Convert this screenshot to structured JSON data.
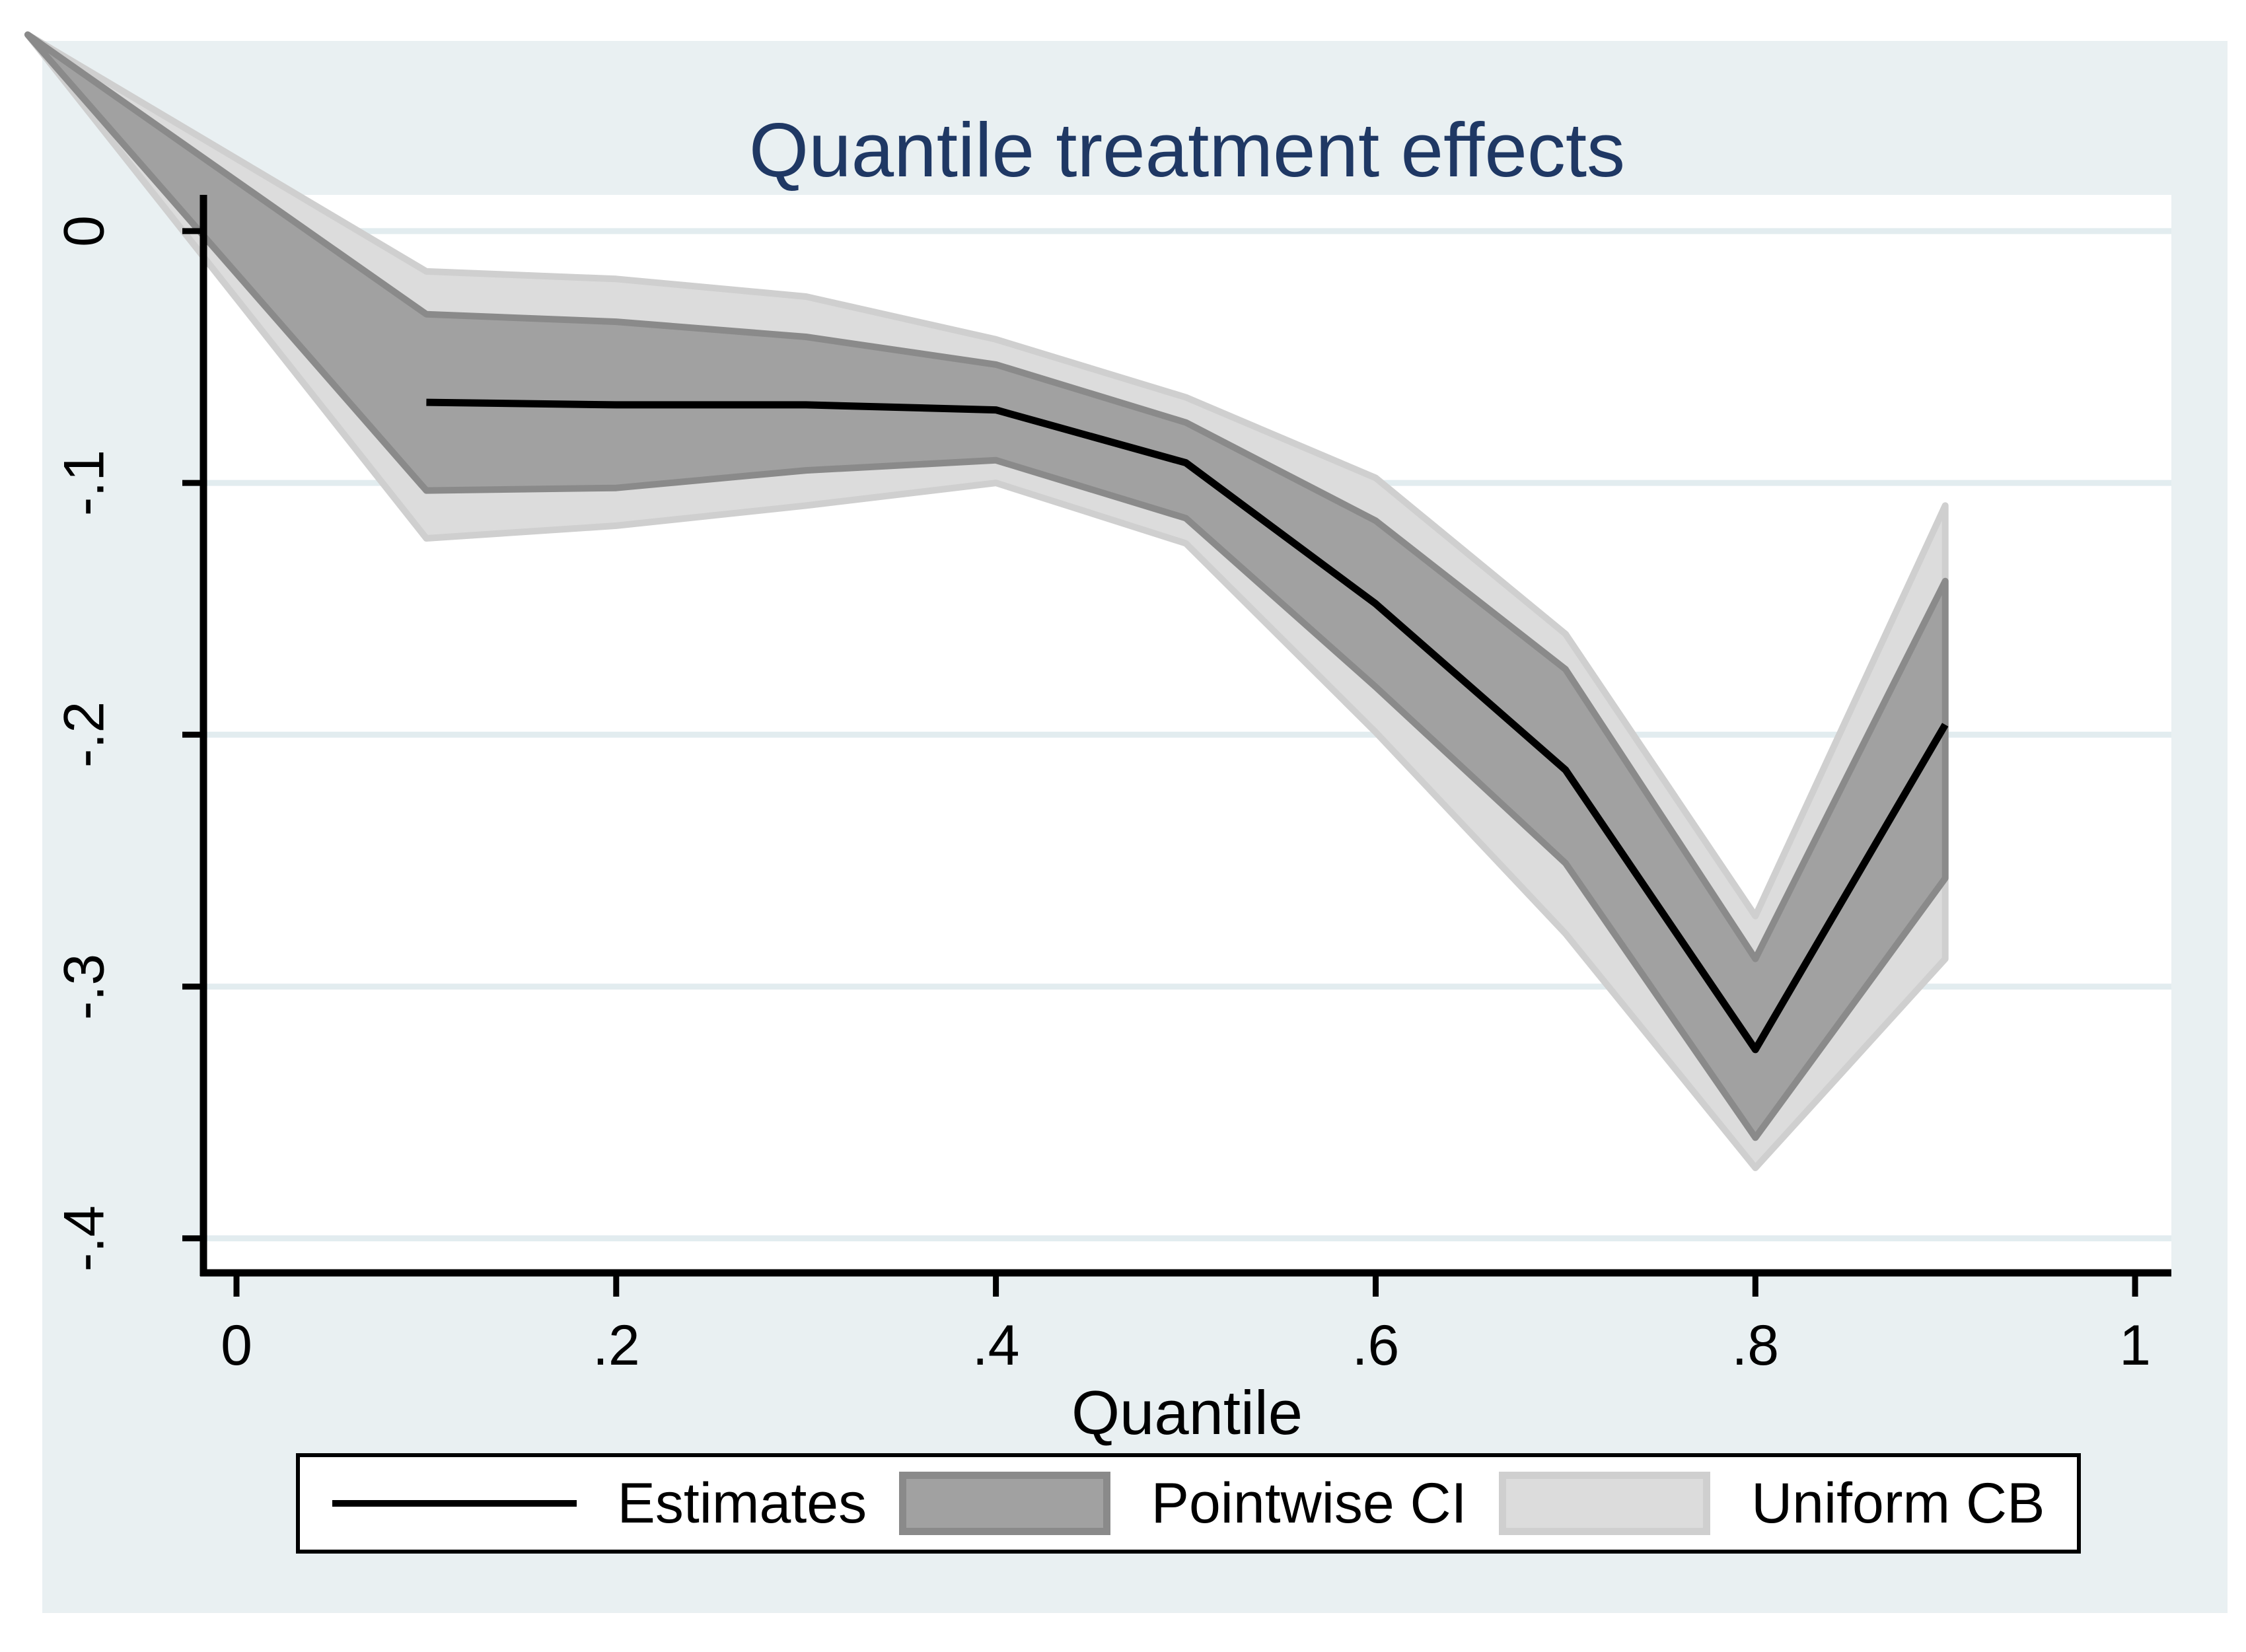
{
  "title": "Quantile treatment effects",
  "colors": {
    "graph_background": "#e9f0f2",
    "plot_background": "#ffffff",
    "gridline": "#e2ecef",
    "title_text": "#1f3864",
    "axis_text": "#000000",
    "estimate_line": "#000000",
    "pointwise_fill": "#a1a1a1",
    "pointwise_outline": "#8a8a8a",
    "uniform_fill": "#dcdcdc",
    "uniform_outline": "#cfcfcf"
  },
  "x_axis": {
    "title": "Quantile",
    "tick_labels": [
      "0",
      ".2",
      ".4",
      ".6",
      ".8",
      "1"
    ],
    "tick_values": [
      0,
      0.2,
      0.4,
      0.6,
      0.8,
      1
    ],
    "range": [
      -0.0174,
      1.0191
    ]
  },
  "y_axis": {
    "tick_labels": [
      "0",
      "-.1",
      "-.2",
      "-.3",
      "-.4"
    ],
    "tick_values": [
      0,
      -0.1,
      -0.2,
      -0.3,
      -0.4
    ],
    "range": [
      0.0144,
      -0.4137
    ],
    "gridlines": true
  },
  "legend": {
    "estimates_label": "Estimates",
    "pointwise_label": "Pointwise CI",
    "uniform_label": "Uniform CB"
  },
  "chart_data": {
    "type": "line",
    "title": "Quantile treatment effects",
    "xlabel": "Quantile",
    "ylabel": "",
    "x": [
      0.1,
      0.2,
      0.3,
      0.4,
      0.5,
      0.6,
      0.7,
      0.8,
      0.9
    ],
    "series": [
      {
        "name": "Estimates",
        "style": "line",
        "values": [
          -0.068,
          -0.069,
          -0.069,
          -0.071,
          -0.092,
          -0.148,
          -0.214,
          -0.325,
          -0.196
        ]
      },
      {
        "name": "Pointwise CI",
        "style": "band",
        "upper": [
          -0.033,
          -0.036,
          -0.042,
          -0.053,
          -0.076,
          -0.115,
          -0.174,
          -0.289,
          -0.139
        ],
        "lower": [
          -0.103,
          -0.102,
          -0.095,
          -0.091,
          -0.114,
          -0.181,
          -0.251,
          -0.36,
          -0.257
        ]
      },
      {
        "name": "Uniform CB",
        "style": "band",
        "upper": [
          -0.016,
          -0.019,
          -0.026,
          -0.043,
          -0.066,
          -0.098,
          -0.16,
          -0.272,
          -0.109
        ],
        "lower": [
          -0.122,
          -0.117,
          -0.109,
          -0.1,
          -0.124,
          -0.199,
          -0.279,
          -0.372,
          -0.289
        ]
      }
    ],
    "bands_apex_point": {
      "x": -0.11,
      "y": 0.078
    },
    "note": "Confidence bands converge to a single point outside the top-left corner of the plot region; the estimate line is drawn only for quantiles .1 to .9.",
    "xlim": [
      -0.0174,
      1.0191
    ],
    "ylim": [
      -0.4137,
      0.0144
    ],
    "legend_position": "bottom"
  }
}
